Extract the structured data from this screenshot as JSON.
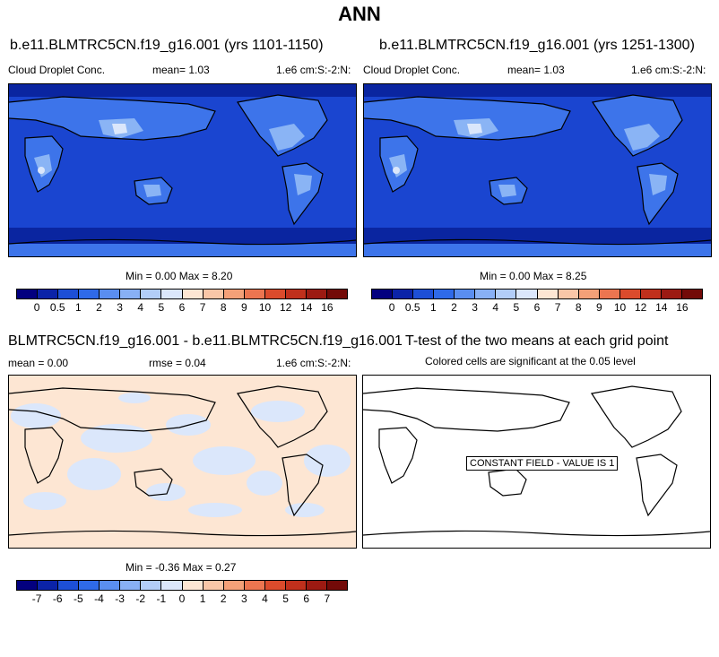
{
  "main_title": "ANN",
  "panels": {
    "p1": {
      "title": "b.e11.BLMTRC5CN.f19_g16.001 (yrs 1101-1150)",
      "variable": "Cloud Droplet Conc.",
      "mean": "mean=   1.03",
      "units": "1.e6 cm:S:-2:N:",
      "minmax": "Min =   0.00 Max =   8.20"
    },
    "p2": {
      "title": "b.e11.BLMTRC5CN.f19_g16.001 (yrs 1251-1300)",
      "variable": "Cloud Droplet Conc.",
      "mean": "mean=   1.03",
      "units": "1.e6 cm:S:-2:N:",
      "minmax": "Min =   0.00 Max =   8.25"
    },
    "p3": {
      "title": "BLMTRC5CN.f19_g16.001 - b.e11.BLMTRC5CN.f19_g16.001",
      "mean": "mean =   0.00",
      "rmse": "rmse =   0.04",
      "units": "1.e6 cm:S:-2:N:",
      "minmax": "Min =  -0.36 Max =   0.27"
    },
    "p4": {
      "title": "T-test of the two means at each grid point",
      "subtitle": "Colored cells are significant at the 0.05 level",
      "constant_label": "CONSTANT FIELD - VALUE IS 1"
    }
  },
  "colorbars": {
    "field": {
      "colors": [
        "#03007f",
        "#0b23a8",
        "#1d4fd6",
        "#2f6ae8",
        "#5a8ef0",
        "#88b0f5",
        "#b2cdf8",
        "#dbe7fb",
        "#fde6d3",
        "#f9c6a7",
        "#f4a078",
        "#ec7550",
        "#db4b2c",
        "#c0301c",
        "#9c1a12",
        "#730a08"
      ],
      "labels": [
        "0",
        "0.5",
        "1",
        "2",
        "3",
        "4",
        "5",
        "6",
        "7",
        "8",
        "9",
        "10",
        "12",
        "14",
        "16"
      ]
    },
    "diff": {
      "colors": [
        "#03007f",
        "#0b23a8",
        "#1d4fd6",
        "#2f6ae8",
        "#5a8ef0",
        "#88b0f5",
        "#b2cdf8",
        "#dbe7fb",
        "#fde6d3",
        "#f9c6a7",
        "#f4a078",
        "#ec7550",
        "#db4b2c",
        "#c0301c",
        "#9c1a12",
        "#730a08"
      ],
      "labels": [
        "-7",
        "-6",
        "-5",
        "-4",
        "-3",
        "-2",
        "-1",
        "0",
        "1",
        "2",
        "3",
        "4",
        "5",
        "6",
        "7"
      ]
    }
  },
  "palette": {
    "ocean_base": "#1a45d0",
    "ocean_polar": "#0a25a0",
    "land_mid": "#3d74ea",
    "land_high": "#8ab4f5",
    "land_peak": "#dbe7fb",
    "diff_pos": "#fde6d3",
    "diff_neg": "#dbe7fb"
  }
}
